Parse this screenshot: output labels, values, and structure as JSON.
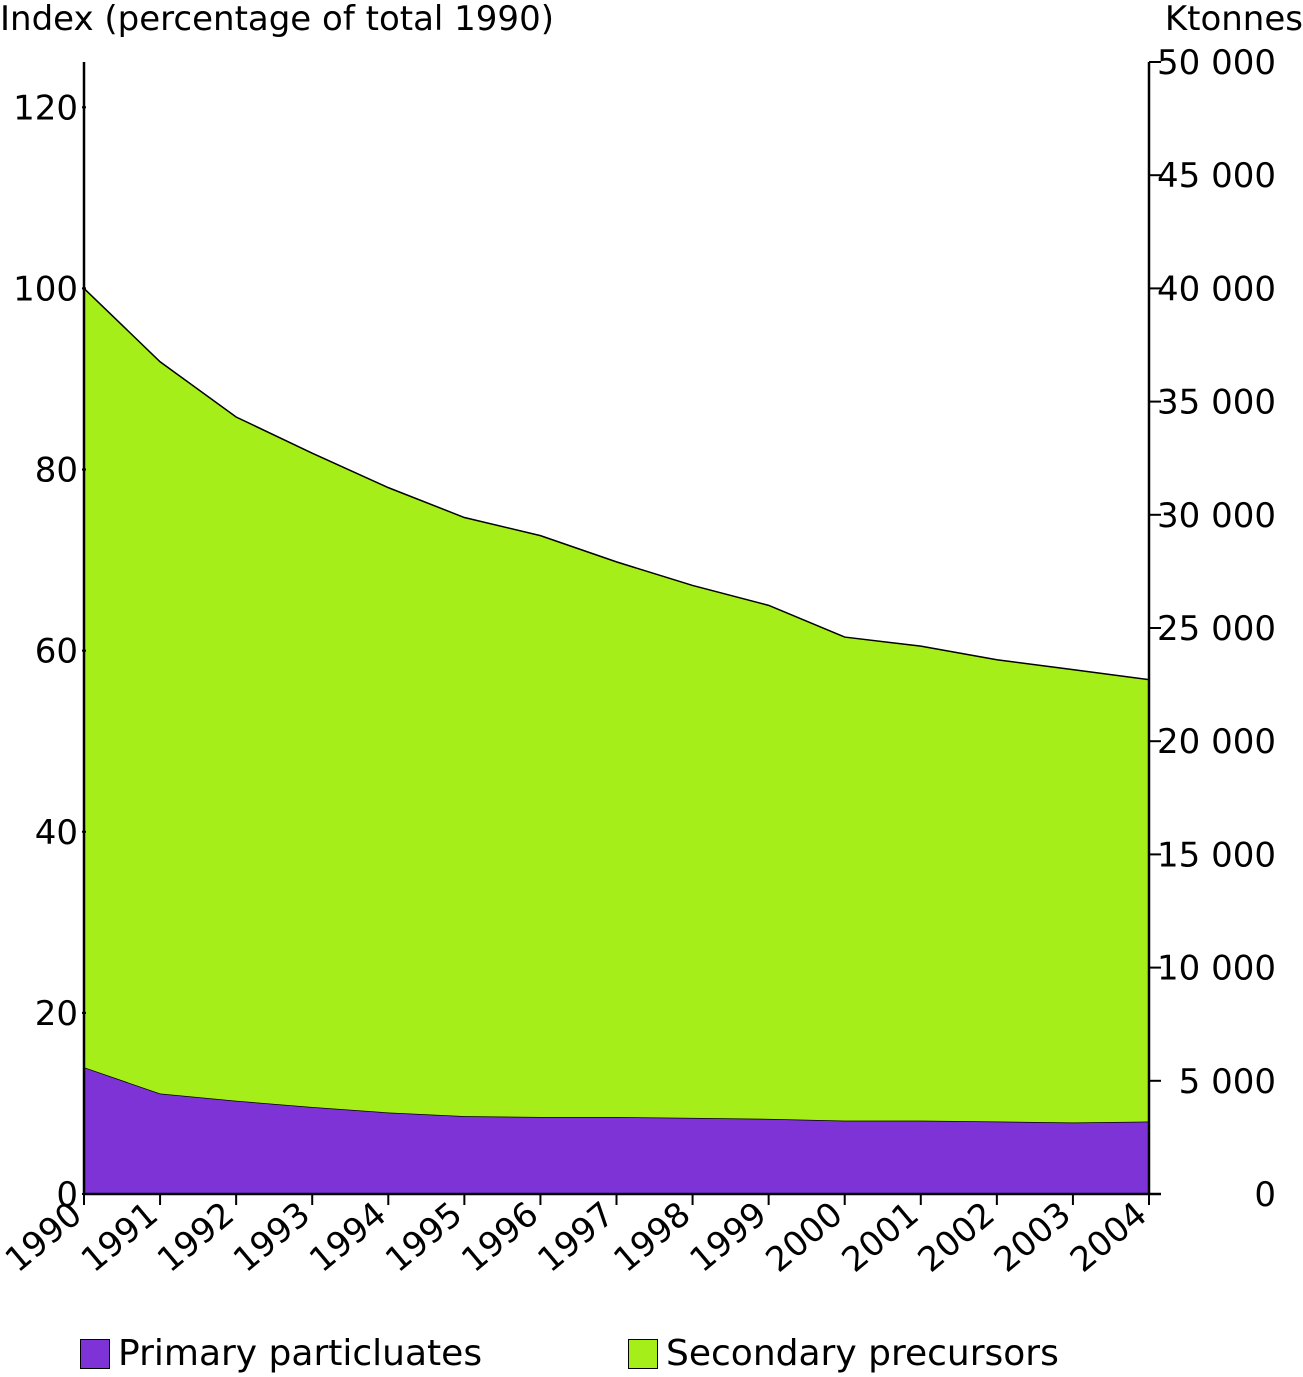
{
  "chart_data": {
    "type": "area",
    "stacked": true,
    "x": [
      "1990",
      "1991",
      "1992",
      "1993",
      "1994",
      "1995",
      "1996",
      "1997",
      "1998",
      "1999",
      "2000",
      "2001",
      "2002",
      "2003",
      "2004"
    ],
    "series": [
      {
        "name": "Primary particluates",
        "color": "#7d33d6",
        "values": [
          14.0,
          11.1,
          10.3,
          9.6,
          9.0,
          8.6,
          8.5,
          8.5,
          8.4,
          8.3,
          8.1,
          8.1,
          8.0,
          7.9,
          8.0
        ]
      },
      {
        "name": "Secondary precursors",
        "color": "#a6ee19",
        "values": [
          86.0,
          80.8,
          75.5,
          72.2,
          69.0,
          66.1,
          64.2,
          61.3,
          58.8,
          56.7,
          53.4,
          52.4,
          51.0,
          50.0,
          48.8
        ]
      }
    ],
    "ylabel_left": "Index (percentage of total 1990)",
    "ylabel_right": "Ktonnes",
    "ylim_left": [
      0,
      125
    ],
    "yticks_left": [
      "0",
      "20",
      "40",
      "60",
      "80",
      "100",
      "120"
    ],
    "ylim_right": [
      0,
      50000
    ],
    "yticks_right": [
      "0",
      "5 000",
      "10 000",
      "15 000",
      "20 000",
      "25 000",
      "30 000",
      "35 000",
      "40 000",
      "45 000",
      "50 000"
    ],
    "grid": false,
    "legend_position": "bottom"
  }
}
